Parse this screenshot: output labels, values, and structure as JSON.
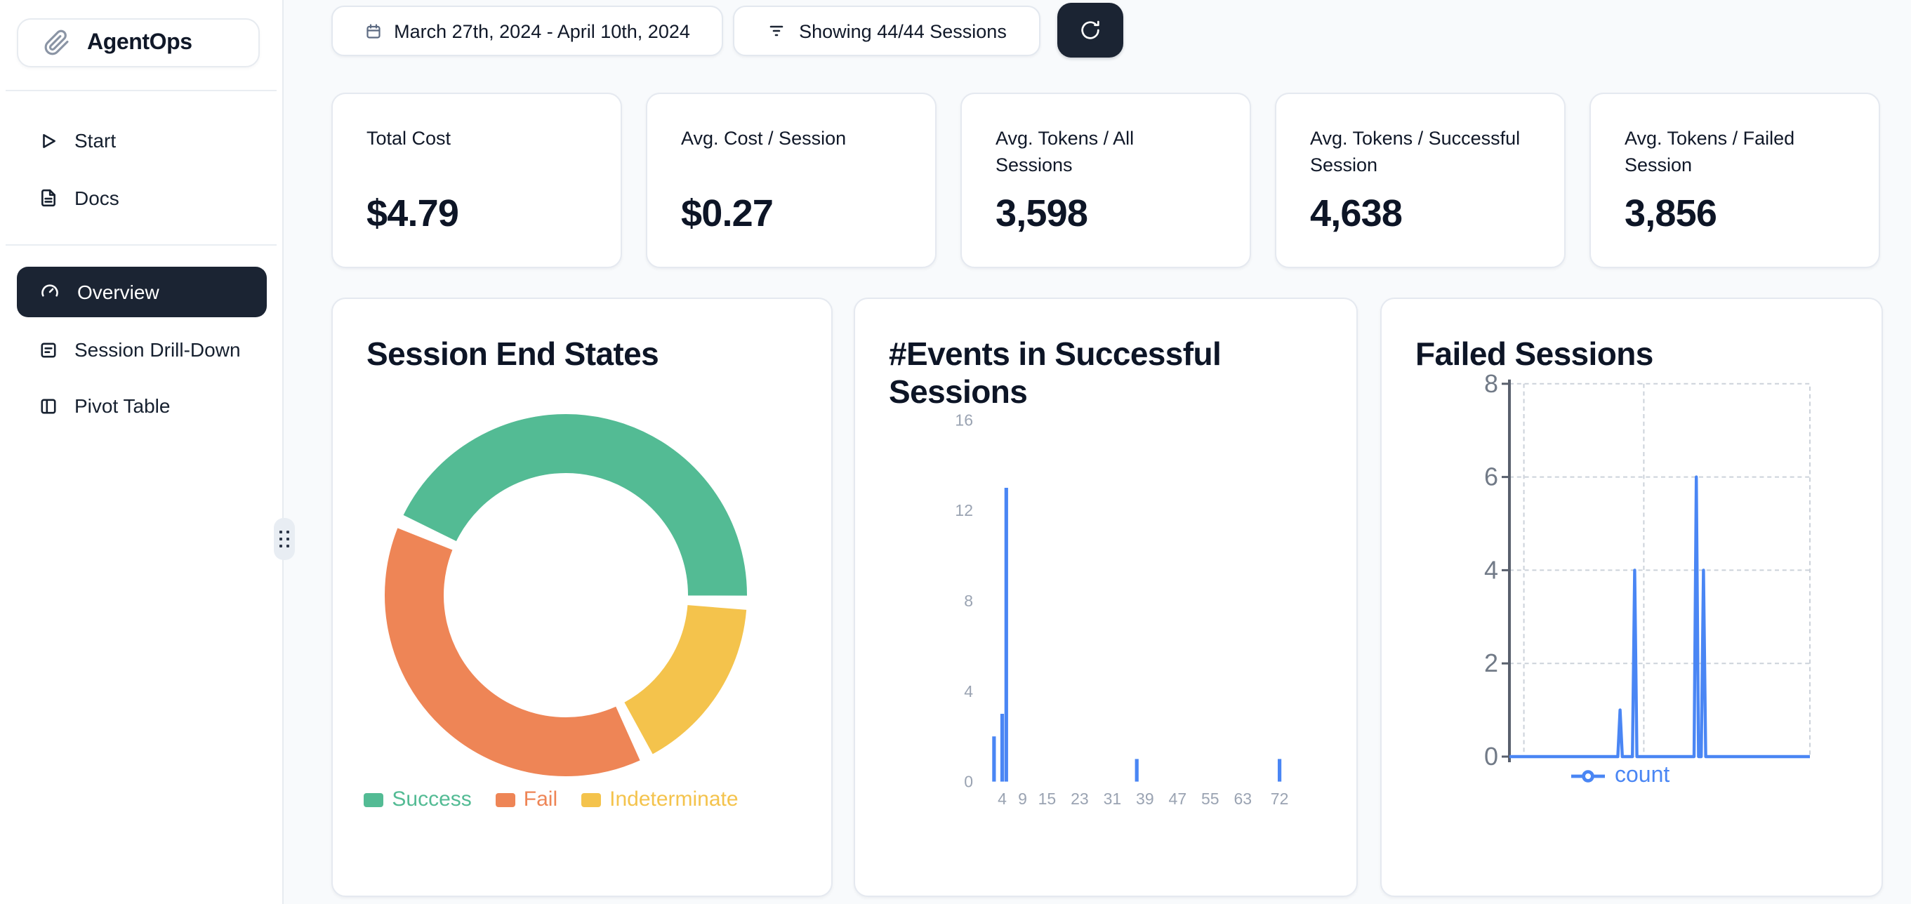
{
  "app": {
    "name": "AgentOps"
  },
  "sidebar": {
    "items": [
      {
        "label": "Start"
      },
      {
        "label": "Docs"
      },
      {
        "label": "Overview",
        "active": true
      },
      {
        "label": "Session Drill-Down"
      },
      {
        "label": "Pivot Table"
      }
    ]
  },
  "toolbar": {
    "date_range": "March 27th, 2024 - April 10th, 2024",
    "sessions_filter": "Showing 44/44 Sessions"
  },
  "stats": [
    {
      "label": "Total Cost",
      "value": "$4.79"
    },
    {
      "label": "Avg. Cost / Session",
      "value": "$0.27"
    },
    {
      "label": "Avg. Tokens / All Sessions",
      "value": "3,598"
    },
    {
      "label": "Avg. Tokens / Successful Session",
      "value": "4,638"
    },
    {
      "label": "Avg. Tokens / Failed Session",
      "value": "3,856"
    }
  ],
  "chart_data": [
    {
      "type": "pie",
      "title": "Session End States",
      "donut": true,
      "start_angle_deg": 294,
      "pad_angle_deg": 4.5,
      "slices": [
        {
          "label": "Success",
          "percent": 44,
          "color": "#53bb94"
        },
        {
          "label": "Indeterminate",
          "percent": 17,
          "color": "#f4c34c"
        },
        {
          "label": "Fail",
          "percent": 39,
          "color": "#ee8556"
        }
      ],
      "legend": [
        {
          "label": "Success",
          "color": "#53bb94"
        },
        {
          "label": "Fail",
          "color": "#ee8556"
        },
        {
          "label": "Indeterminate",
          "color": "#f4c34c"
        }
      ],
      "legend_position": "bottom"
    },
    {
      "type": "bar",
      "title": "#Events in Successful Sessions",
      "xlabel": "",
      "ylabel": "",
      "ylim": [
        0,
        16
      ],
      "y_ticks": [
        0,
        4,
        8,
        12,
        16
      ],
      "x_ticks": [
        4,
        9,
        15,
        23,
        31,
        39,
        47,
        55,
        63,
        72
      ],
      "bars": [
        {
          "x": 2,
          "count": 2
        },
        {
          "x": 4,
          "count": 3
        },
        {
          "x": 5,
          "count": 13
        },
        {
          "x": 37,
          "count": 1
        },
        {
          "x": 72,
          "count": 1
        }
      ],
      "color": "#4a86f4",
      "grid": "off"
    },
    {
      "type": "line",
      "title": "Failed Sessions",
      "ylim": [
        0,
        8
      ],
      "y_ticks": [
        0,
        2,
        4,
        6,
        8
      ],
      "grid": "dashed",
      "series": [
        {
          "name": "count",
          "color": "#4a86f4",
          "spikes": [
            {
              "pos": 0.368,
              "count": 1
            },
            {
              "pos": 0.417,
              "count": 4
            },
            {
              "pos": 0.622,
              "count": 6
            },
            {
              "pos": 0.646,
              "count": 4
            }
          ]
        }
      ],
      "legend_position": "bottom"
    }
  ]
}
